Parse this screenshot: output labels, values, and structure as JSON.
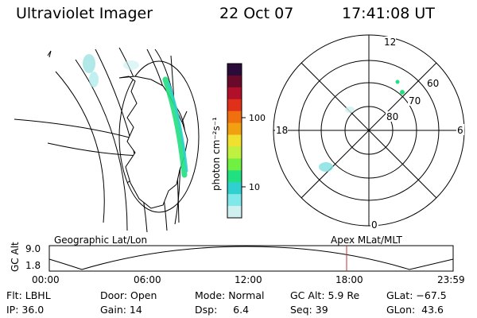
{
  "header": {
    "instrument": "Ultraviolet Imager",
    "date": "22 Oct 07",
    "time": "17:41:08 UT"
  },
  "colorbar": {
    "unit_label": "photon cm⁻²s⁻¹",
    "ticks": [
      "100",
      "10"
    ],
    "colors": [
      "#2a0b3a",
      "#6a0a2a",
      "#b0102a",
      "#e0301a",
      "#f07010",
      "#f0a010",
      "#f0e030",
      "#c0f040",
      "#70f040",
      "#20e080",
      "#30d0d0",
      "#80e8e8",
      "#d0f0f0"
    ]
  },
  "polar": {
    "mlat_labels": [
      "60",
      "70",
      "80"
    ],
    "mlt_labels": {
      "top": "12",
      "left": "18",
      "right": "6",
      "bottom": "0"
    }
  },
  "timeline": {
    "y_axis_label": "GC Alt",
    "y_ticks": [
      "9.0",
      "1.8"
    ],
    "left_title": "Geographic Lat/Lon",
    "right_title": "Apex MLat/MLT",
    "x_ticks": [
      "00:00",
      "06:00",
      "12:00",
      "18:00",
      "23:59"
    ],
    "marker_color": "#c03030"
  },
  "status": {
    "row1": [
      "Flt: LBHL",
      "Door: Open",
      "Mode: Normal",
      "GC Alt: 5.9 Re",
      "GLat: −67.5"
    ],
    "row2": [
      "IP: 36.0",
      "Gain: 14",
      "Dsp:     6.4",
      "Seq: 39",
      "GLon:  43.6"
    ]
  }
}
